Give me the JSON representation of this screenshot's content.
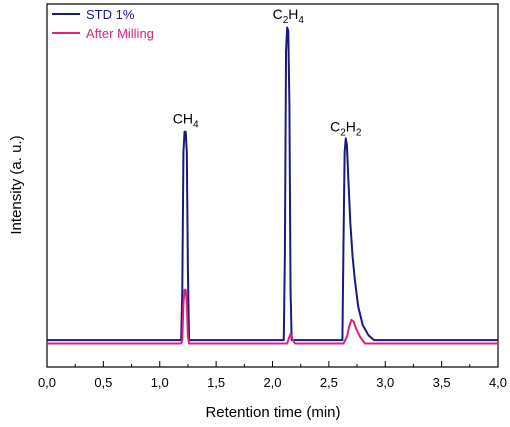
{
  "chart_data": {
    "type": "line",
    "xlabel": "Retention time (min)",
    "ylabel": "Intensity (a. u.)",
    "xlim": [
      0.0,
      4.0
    ],
    "ylim": [
      -0.08,
      1.0
    ],
    "x_ticks": [
      "0,0",
      "0,5",
      "1,0",
      "1,5",
      "2,0",
      "2,5",
      "3,0",
      "3,5",
      "4,0"
    ],
    "y_ticks_labeled": false,
    "grid": false,
    "legend": {
      "placement": "top-left"
    },
    "colors": {
      "std": "#1a1a7a",
      "after": "#e0207a"
    },
    "series": [
      {
        "name": "STD 1%",
        "color": "#1a1a7a",
        "x": [
          0.0,
          1.19,
          1.2,
          1.21,
          1.22,
          1.23,
          1.24,
          1.25,
          1.26,
          2.1,
          2.11,
          2.12,
          2.13,
          2.14,
          2.15,
          2.16,
          2.17,
          2.62,
          2.63,
          2.64,
          2.65,
          2.66,
          2.67,
          2.69,
          2.71,
          2.73,
          2.76,
          2.8,
          2.85,
          2.9,
          4.0
        ],
        "y": [
          0.0,
          0.0,
          0.15,
          0.56,
          0.62,
          0.62,
          0.56,
          0.2,
          0.0,
          0.0,
          0.26,
          0.86,
          0.93,
          0.92,
          0.7,
          0.15,
          0.0,
          0.0,
          0.3,
          0.56,
          0.6,
          0.58,
          0.5,
          0.35,
          0.25,
          0.18,
          0.1,
          0.045,
          0.015,
          0.0,
          0.0
        ]
      },
      {
        "name": "After Milling",
        "color": "#e0207a",
        "x": [
          0.0,
          1.19,
          1.2,
          1.21,
          1.22,
          1.23,
          1.24,
          1.25,
          1.26,
          2.13,
          2.15,
          2.16,
          2.17,
          2.18,
          2.2,
          2.63,
          2.66,
          2.68,
          2.7,
          2.72,
          2.74,
          2.78,
          2.82,
          4.0
        ],
        "y": [
          -0.01,
          -0.01,
          0.0,
          0.11,
          0.15,
          0.15,
          0.11,
          0.01,
          -0.01,
          -0.01,
          0.01,
          0.018,
          0.012,
          0.0,
          -0.01,
          -0.01,
          0.01,
          0.04,
          0.06,
          0.055,
          0.035,
          0.008,
          -0.01,
          -0.01
        ]
      }
    ],
    "annotations": [
      {
        "base": "CH",
        "sub": "4",
        "x": 1.23,
        "y": 0.645
      },
      {
        "base": "C",
        "sub1": "2",
        "mid": "H",
        "sub2": "4",
        "x": 2.14,
        "y": 0.955
      },
      {
        "base": "C",
        "sub1": "2",
        "mid": "H",
        "sub2": "2",
        "x": 2.65,
        "y": 0.62
      }
    ]
  }
}
